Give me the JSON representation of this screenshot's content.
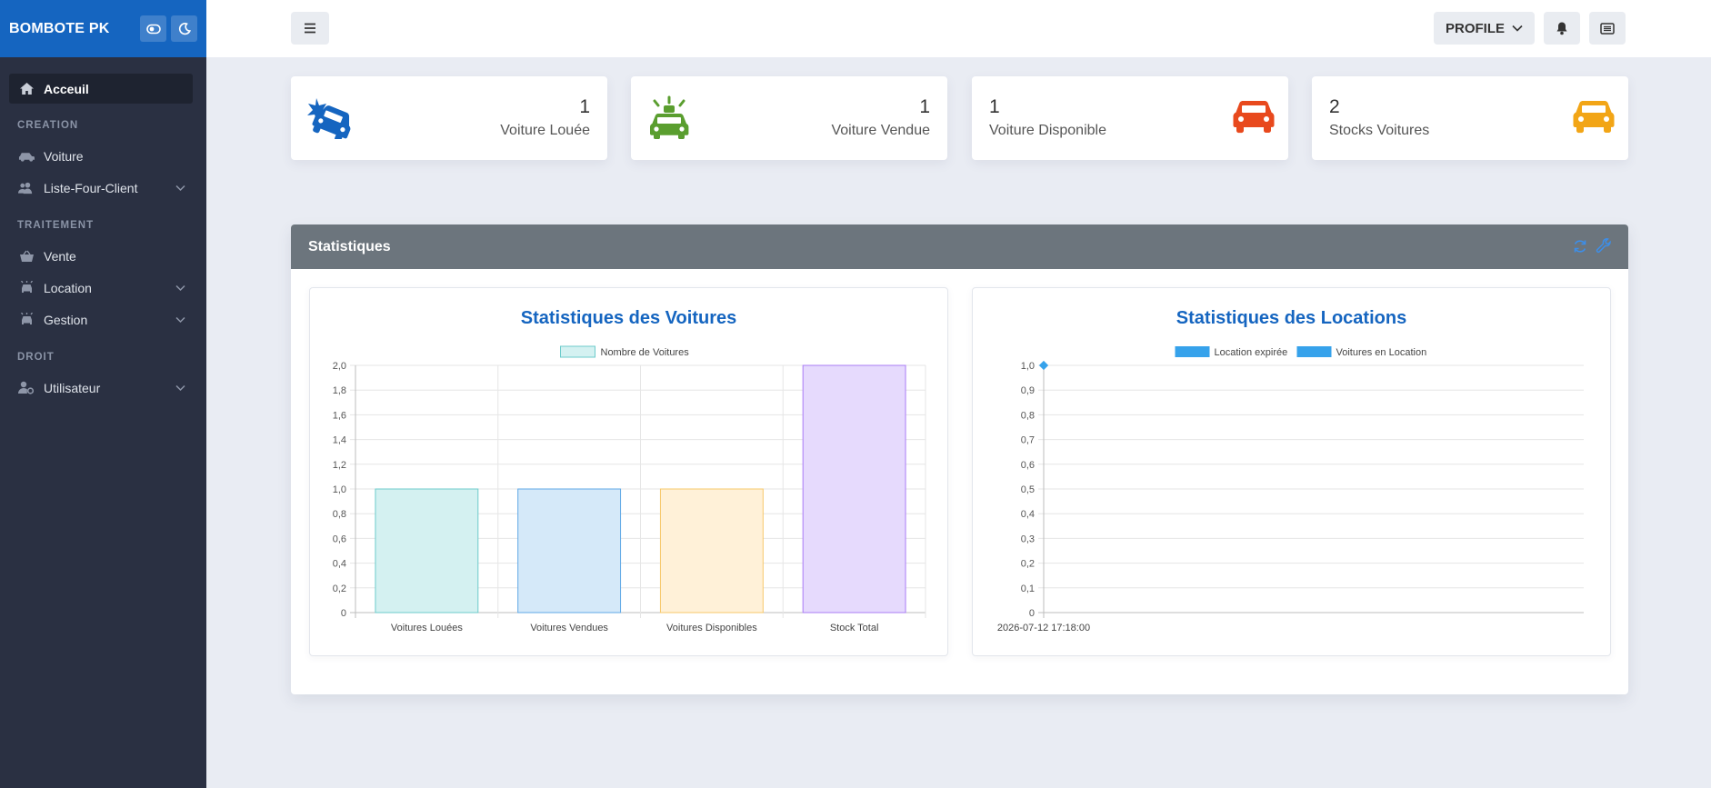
{
  "sidebar": {
    "brand": "BOMBOTE PK",
    "active": {
      "label": "Acceuil",
      "icon": "home-icon"
    },
    "sections": [
      {
        "title": "CREATION",
        "items": [
          {
            "label": "Voiture",
            "icon": "car-icon",
            "chevron": false
          },
          {
            "label": "Liste-Four-Client",
            "icon": "users-icon",
            "chevron": true
          }
        ]
      },
      {
        "title": "TRAITEMENT",
        "items": [
          {
            "label": "Vente",
            "icon": "basket-icon",
            "chevron": false
          },
          {
            "label": "Location",
            "icon": "car-key-icon",
            "chevron": true
          },
          {
            "label": "Gestion",
            "icon": "car-gear-icon",
            "chevron": true
          }
        ]
      },
      {
        "title": "DROIT",
        "items": [
          {
            "label": "Utilisateur",
            "icon": "user-cog-icon",
            "chevron": true
          }
        ]
      }
    ]
  },
  "topbar": {
    "profile_label": "PROFILE"
  },
  "cards": [
    {
      "value": "1",
      "label": "Voiture Louée",
      "icon": "car-crash-icon",
      "color": "#1565c0"
    },
    {
      "value": "1",
      "label": "Voiture Vendue",
      "icon": "car-alert-icon",
      "color": "#5a9e2f"
    },
    {
      "value": "1",
      "label": "Voiture Disponible",
      "icon": "car-icon",
      "color": "#e8491d"
    },
    {
      "value": "2",
      "label": "Stocks Voitures",
      "icon": "car-icon",
      "color": "#f2a516"
    }
  ],
  "panel": {
    "title": "Statistiques"
  },
  "chart_data": [
    {
      "type": "bar",
      "title": "Statistiques des Voitures",
      "categories": [
        "Voitures Louées",
        "Voitures Vendues",
        "Voitures Disponibles",
        "Stock Total"
      ],
      "series": [
        {
          "name": "Nombre de Voitures",
          "values": [
            1,
            1,
            1,
            2
          ]
        }
      ],
      "bar_colors": [
        "#d4f1f1",
        "#d5e9f9",
        "#fff1d8",
        "#e6dafd"
      ],
      "bar_borders": [
        "#6ccbcb",
        "#5fa8e6",
        "#f7c86a",
        "#a97cf5"
      ],
      "ylim": [
        0,
        2
      ],
      "yticks": [
        "0",
        "0,2",
        "0,4",
        "0,6",
        "0,8",
        "1,0",
        "1,2",
        "1,4",
        "1,6",
        "1,8",
        "2,0"
      ],
      "legend": "top",
      "grid": true
    },
    {
      "type": "line",
      "title": "Statistiques des Locations",
      "x": [
        "2026-07-12 17:18:00"
      ],
      "series": [
        {
          "name": "Location expirée",
          "values": [
            1
          ],
          "color": "#36a2eb"
        },
        {
          "name": "Voitures en  Location",
          "values": [
            1
          ],
          "color": "#36a2eb"
        }
      ],
      "ylim": [
        0,
        1
      ],
      "yticks": [
        "0",
        "0,1",
        "0,2",
        "0,3",
        "0,4",
        "0,5",
        "0,6",
        "0,7",
        "0,8",
        "0,9",
        "1,0"
      ],
      "legend": "top",
      "grid": true
    }
  ]
}
